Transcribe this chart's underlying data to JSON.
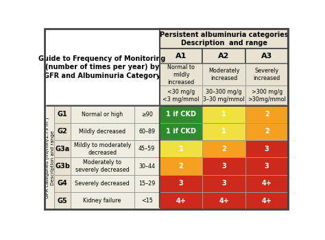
{
  "title_main": "Persistent albuminuria categories\nDescription  and range",
  "guide_text": "Guide to Frequency of Monitoring\n(number of times per year) by\nGFR and Albuminuria Category",
  "col_headers": [
    "A1",
    "A2",
    "A3"
  ],
  "col_desc": [
    "Normal to\nmildly\nincreased",
    "Moderately\nincreased",
    "Severely\nincreased"
  ],
  "col_range": [
    "<30 mg/g\n<3 mg/mmol",
    "30–300 mg/g\n3–30 mg/mmol",
    ">300 mg/g\n>30mg/mmol"
  ],
  "row_labels": [
    "G1",
    "G2",
    "G3a",
    "G3b",
    "G4",
    "G5"
  ],
  "row_desc": [
    "Normal or high",
    "Mildly decreased",
    "Mildly to moderately\ndecreased",
    "Moderately to\nseverely decreased",
    "Severely decreased",
    "Kidney failure"
  ],
  "row_range": [
    "≥90",
    "60–89",
    "45–59",
    "30–44",
    "15–29",
    "<15"
  ],
  "cell_values": [
    [
      "1 if CKD",
      "1",
      "2"
    ],
    [
      "1 if CKD",
      "1",
      "2"
    ],
    [
      "1",
      "2",
      "3"
    ],
    [
      "2",
      "3",
      "3"
    ],
    [
      "3",
      "3",
      "4+"
    ],
    [
      "4+",
      "4+",
      "4+"
    ]
  ],
  "cell_colors": [
    [
      "#2e8b2e",
      "#f0e040",
      "#f5a020"
    ],
    [
      "#2e8b2e",
      "#f0e040",
      "#f5a020"
    ],
    [
      "#f0e040",
      "#f5a020",
      "#cc2a1a"
    ],
    [
      "#f5a020",
      "#cc2a1a",
      "#cc2a1a"
    ],
    [
      "#cc2a1a",
      "#cc2a1a",
      "#cc2a1a"
    ],
    [
      "#cc2a1a",
      "#cc2a1a",
      "#cc2a1a"
    ]
  ],
  "header_bg": "#e8e2d2",
  "left_bg": "#f0ece0",
  "outer_border": "#444444",
  "thin_border": "#999999",
  "gfr_label": "GFR categories (ml/min/1.73 m²)\nDescription and range",
  "fig_bg": "#ffffff",
  "table_bg": "#f0ece0"
}
